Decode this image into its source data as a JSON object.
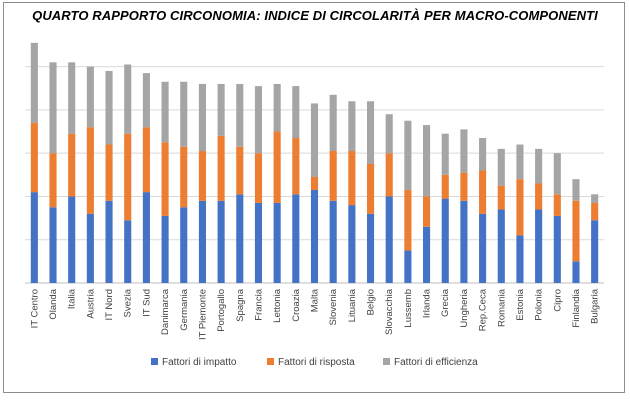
{
  "chart_data": {
    "type": "bar",
    "stacked": true,
    "title": "QUARTO RAPPORTO CIRCONOMIA:  INDICE DI CIRCOLARITÀ PER MACRO-COMPONENTI",
    "xlabel": "",
    "ylabel": "",
    "ylim": [
      0,
      11
    ],
    "grid": true,
    "legend_position": "bottom",
    "categories": [
      "IT Centro",
      "Olanda",
      "Italia",
      "Austria",
      "IT Nord",
      "Svezia",
      "IT Sud",
      "Danimarca",
      "Germania",
      "IT Piemonte",
      "Portogallo",
      "Spagna",
      "Francia",
      "Lettonia",
      "Croazia",
      "Malta",
      "Slovenia",
      "Lituania",
      "Belgio",
      "Slovacchia",
      "Lussemb",
      "Irlanda",
      "Grecia",
      "Ungheria",
      "Rep.Ceca",
      "Romania",
      "Estonia",
      "Polonia",
      "Cipro",
      "Finlandia",
      "Bulgaria"
    ],
    "series": [
      {
        "name": "Fattori di impatto",
        "color": "#4472c4",
        "values": [
          4.2,
          3.5,
          4.0,
          3.2,
          3.8,
          2.9,
          4.2,
          3.1,
          3.5,
          3.8,
          3.8,
          4.1,
          3.7,
          3.7,
          4.1,
          4.3,
          3.8,
          3.6,
          3.2,
          4.0,
          1.5,
          2.6,
          3.9,
          3.8,
          3.2,
          3.4,
          2.2,
          3.4,
          3.1,
          1.0,
          2.9
        ]
      },
      {
        "name": "Fattori di risposta",
        "color": "#ed7d31",
        "values": [
          3.2,
          2.5,
          2.9,
          4.0,
          2.6,
          4.0,
          3.0,
          3.4,
          2.8,
          2.3,
          3.0,
          2.2,
          2.3,
          3.3,
          2.6,
          0.6,
          2.3,
          2.5,
          2.3,
          2.0,
          2.8,
          1.4,
          1.1,
          1.3,
          2.0,
          1.1,
          2.6,
          1.2,
          1.0,
          2.8,
          0.8
        ]
      },
      {
        "name": "Fattori di efficienza",
        "color": "#a5a5a5",
        "values": [
          3.7,
          4.2,
          3.3,
          2.8,
          3.4,
          3.2,
          2.5,
          2.8,
          3.0,
          3.1,
          2.4,
          2.9,
          3.1,
          2.2,
          2.4,
          3.4,
          2.6,
          2.3,
          2.9,
          1.8,
          3.2,
          3.3,
          1.9,
          2.0,
          1.5,
          1.7,
          1.6,
          1.6,
          1.9,
          1.0,
          0.4
        ]
      }
    ]
  }
}
